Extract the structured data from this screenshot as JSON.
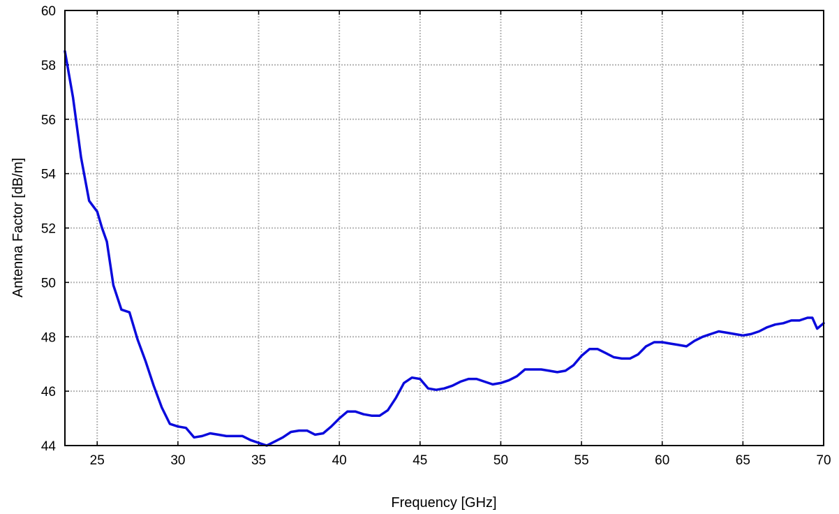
{
  "chart_data": {
    "type": "line",
    "title": "",
    "xlabel": "Frequency [GHz]",
    "ylabel": "Antenna Factor [dB/m]",
    "xlim": [
      23,
      70
    ],
    "ylim": [
      44,
      60
    ],
    "x_ticks": [
      25,
      30,
      35,
      40,
      45,
      50,
      55,
      60,
      65,
      70
    ],
    "y_ticks": [
      44,
      46,
      48,
      50,
      52,
      54,
      56,
      58,
      60
    ],
    "grid": true,
    "legend": "none",
    "series": [
      {
        "color": "#0b0bdc",
        "x": [
          23.0,
          23.5,
          24.0,
          24.5,
          25.0,
          25.3,
          25.6,
          26.0,
          26.5,
          27.0,
          27.5,
          28.0,
          28.5,
          29.0,
          29.5,
          30.0,
          30.5,
          31.0,
          31.5,
          32.0,
          32.5,
          33.0,
          33.5,
          34.0,
          34.5,
          35.0,
          35.5,
          36.0,
          36.5,
          37.0,
          37.5,
          38.0,
          38.5,
          39.0,
          39.5,
          40.0,
          40.5,
          41.0,
          41.5,
          42.0,
          42.5,
          43.0,
          43.5,
          44.0,
          44.5,
          45.0,
          45.5,
          46.0,
          46.5,
          47.0,
          47.5,
          48.0,
          48.5,
          49.0,
          49.5,
          50.0,
          50.5,
          51.0,
          51.5,
          52.0,
          52.5,
          53.0,
          53.5,
          54.0,
          54.5,
          55.0,
          55.5,
          56.0,
          56.5,
          57.0,
          57.5,
          58.0,
          58.5,
          59.0,
          59.5,
          60.0,
          60.5,
          61.0,
          61.5,
          62.0,
          62.5,
          63.0,
          63.5,
          64.0,
          64.5,
          65.0,
          65.5,
          66.0,
          66.5,
          67.0,
          67.5,
          68.0,
          68.5,
          69.0,
          69.3,
          69.6,
          70.0
        ],
        "y": [
          58.5,
          56.8,
          54.6,
          53.0,
          52.6,
          52.0,
          51.5,
          49.9,
          49.0,
          48.9,
          47.9,
          47.1,
          46.2,
          45.4,
          44.8,
          44.7,
          44.65,
          44.3,
          44.35,
          44.45,
          44.4,
          44.35,
          44.35,
          44.35,
          44.2,
          44.1,
          44.0,
          44.15,
          44.3,
          44.5,
          44.55,
          44.55,
          44.4,
          44.45,
          44.7,
          45.0,
          45.25,
          45.25,
          45.15,
          45.1,
          45.1,
          45.3,
          45.75,
          46.3,
          46.5,
          46.45,
          46.1,
          46.05,
          46.1,
          46.2,
          46.35,
          46.45,
          46.45,
          46.35,
          46.25,
          46.3,
          46.4,
          46.55,
          46.8,
          46.8,
          46.8,
          46.75,
          46.7,
          46.75,
          46.95,
          47.3,
          47.55,
          47.55,
          47.4,
          47.25,
          47.2,
          47.2,
          47.35,
          47.65,
          47.8,
          47.8,
          47.75,
          47.7,
          47.65,
          47.85,
          48.0,
          48.1,
          48.2,
          48.15,
          48.1,
          48.05,
          48.1,
          48.2,
          48.35,
          48.45,
          48.5,
          48.6,
          48.6,
          48.7,
          48.7,
          48.3,
          48.5
        ]
      }
    ]
  }
}
